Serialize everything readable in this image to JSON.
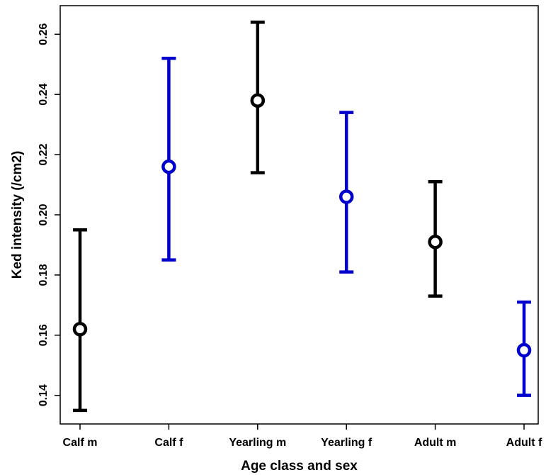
{
  "chart_data": {
    "type": "scatter",
    "title": "",
    "xlabel": "Age class and sex",
    "ylabel": "Ked intensity (/cm2)",
    "categories": [
      "Calf m",
      "Calf f",
      "Yearling m",
      "Yearling f",
      "Adult m",
      "Adult f"
    ],
    "points": [
      {
        "category": "Calf m",
        "value": 0.162,
        "lower": 0.135,
        "upper": 0.195,
        "color": "#000000"
      },
      {
        "category": "Calf f",
        "value": 0.216,
        "lower": 0.185,
        "upper": 0.252,
        "color": "#0000cc"
      },
      {
        "category": "Yearling m",
        "value": 0.238,
        "lower": 0.214,
        "upper": 0.264,
        "color": "#000000"
      },
      {
        "category": "Yearling f",
        "value": 0.206,
        "lower": 0.181,
        "upper": 0.234,
        "color": "#0000cc"
      },
      {
        "category": "Adult m",
        "value": 0.191,
        "lower": 0.173,
        "upper": 0.211,
        "color": "#000000"
      },
      {
        "category": "Adult f",
        "value": 0.155,
        "lower": 0.14,
        "upper": 0.171,
        "color": "#0000cc"
      }
    ],
    "yticks": [
      0.14,
      0.16,
      0.18,
      0.2,
      0.22,
      0.24,
      0.26
    ],
    "ytick_labels": [
      "0.14",
      "0.16",
      "0.18",
      "0.20",
      "0.22",
      "0.24",
      "0.26"
    ],
    "ylim": [
      0.1305,
      0.2695
    ],
    "grid": false,
    "legend": "none",
    "colors": {
      "male": "#000000",
      "female": "#0000cc"
    }
  }
}
